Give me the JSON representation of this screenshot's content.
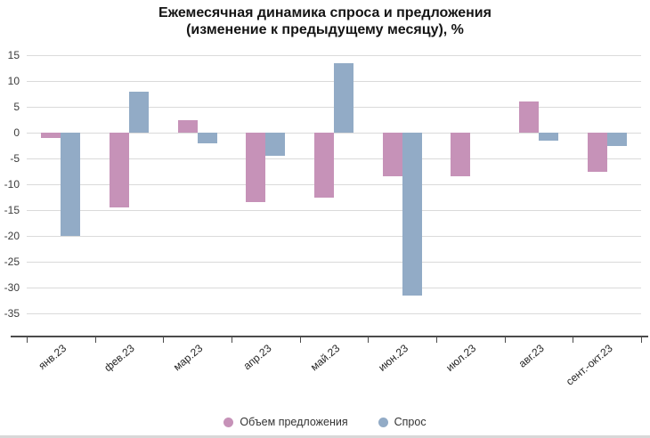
{
  "chart": {
    "title": "Ежемесячная динамика спроса и предложения",
    "subtitle": "(изменение к предыдущему месяцу), %"
  },
  "chart_data": {
    "type": "bar",
    "categories": [
      "янв.23",
      "фев.23",
      "мар.23",
      "апр.23",
      "май.23",
      "июн.23",
      "июл.23",
      "авг.23",
      "сент.-окт.23"
    ],
    "series": [
      {
        "name": "Объем предложения",
        "color": "#c692b8",
        "values": [
          -1,
          -14.5,
          2.5,
          -13.5,
          -12.5,
          -8.5,
          -8.5,
          6,
          -7.5
        ]
      },
      {
        "name": "Спрос",
        "color": "#92abc6",
        "values": [
          -20,
          8,
          -2,
          -4.5,
          13.5,
          -31.5,
          0,
          -1.5,
          -2.5
        ]
      }
    ],
    "xlabel": "",
    "ylabel": "",
    "ylim": [
      -35,
      15
    ],
    "ytick_step": 5,
    "yticks": [
      15,
      10,
      5,
      0,
      -5,
      -10,
      -15,
      -20,
      -25,
      -30,
      -35
    ],
    "grid": true,
    "legend_position": "bottom"
  }
}
